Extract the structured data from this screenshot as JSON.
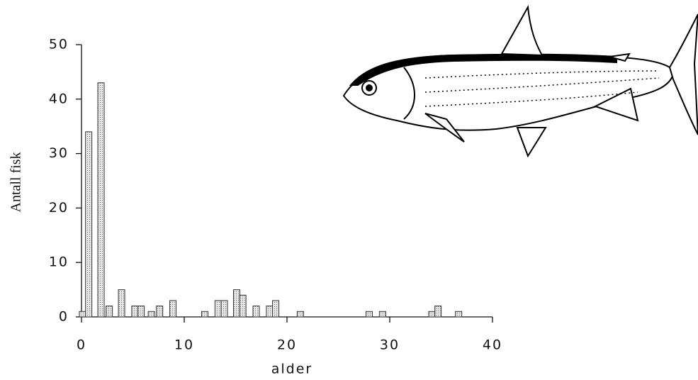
{
  "chart_data": {
    "type": "bar",
    "x_label": "alder",
    "y_label": "Antall fisk",
    "x": [
      0.1,
      0.7,
      1.9,
      2.7,
      3.9,
      5.2,
      5.8,
      6.8,
      7.6,
      8.9,
      12.0,
      13.3,
      13.9,
      15.1,
      15.7,
      17.0,
      18.3,
      18.9,
      21.3,
      28.0,
      29.3,
      34.1,
      34.7,
      36.7
    ],
    "values": [
      1,
      34,
      43,
      2,
      5,
      2,
      2,
      1,
      2,
      3,
      1,
      3,
      3,
      5,
      4,
      2,
      2,
      3,
      1,
      1,
      1,
      1,
      2,
      1
    ],
    "color": "#c8c8c8",
    "xlim": [
      0,
      40
    ],
    "xticks": [
      0,
      10,
      20,
      30,
      40
    ],
    "ylim": [
      0,
      50
    ],
    "yticks": [
      0,
      10,
      20,
      30,
      40,
      50
    ]
  }
}
